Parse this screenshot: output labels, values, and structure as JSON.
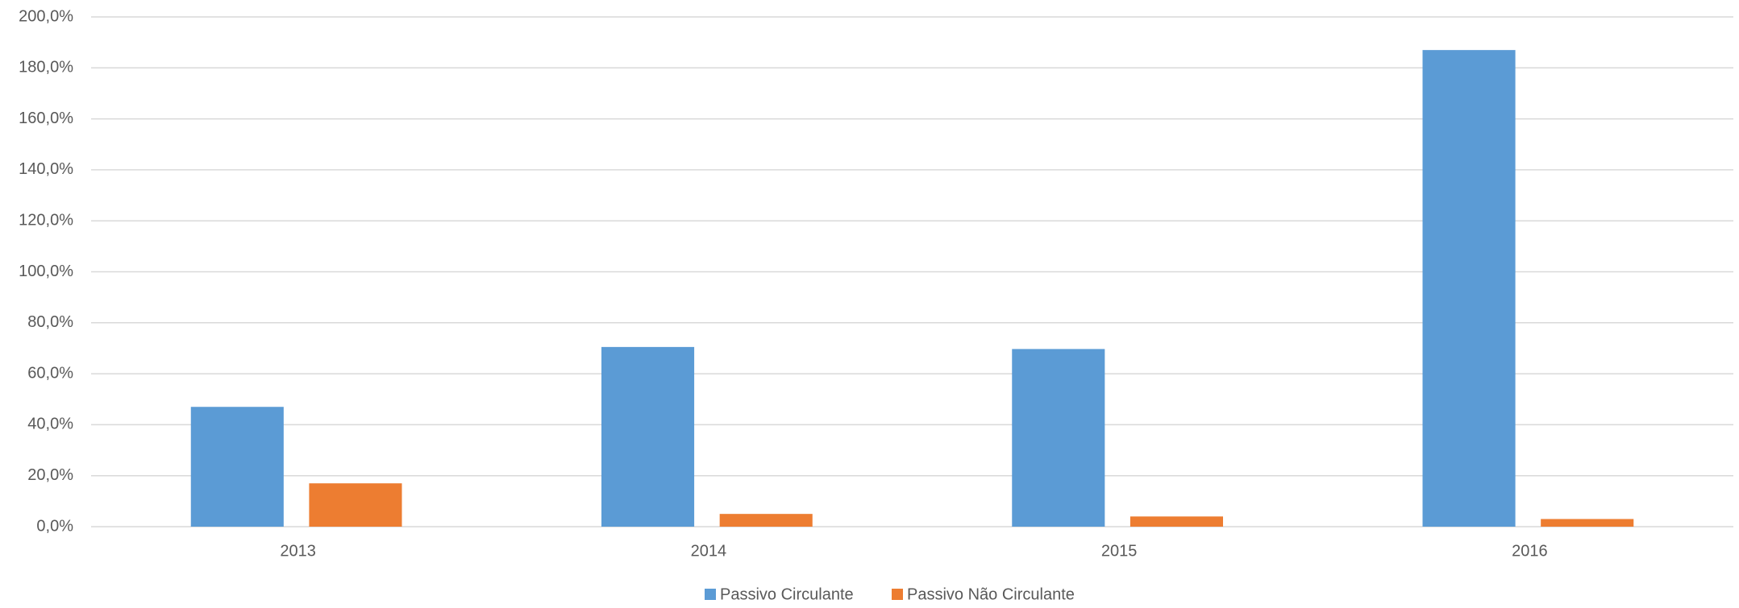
{
  "chart_data": {
    "type": "bar",
    "categories": [
      "2013",
      "2014",
      "2015",
      "2016"
    ],
    "series": [
      {
        "name": "Passivo Circulante",
        "color": "#5b9bd5",
        "values": [
          47,
          70.5,
          69.7,
          187
        ]
      },
      {
        "name": "Passivo Não Circulante",
        "color": "#ed7d31",
        "values": [
          17,
          5,
          4,
          3
        ]
      }
    ],
    "ylim": [
      0,
      200
    ],
    "yticks": [
      {
        "value": 0,
        "label": "0,0%"
      },
      {
        "value": 20,
        "label": "20,0%"
      },
      {
        "value": 40,
        "label": "40,0%"
      },
      {
        "value": 60,
        "label": "60,0%"
      },
      {
        "value": 80,
        "label": "80,0%"
      },
      {
        "value": 100,
        "label": "100,0%"
      },
      {
        "value": 120,
        "label": "120,0%"
      },
      {
        "value": 140,
        "label": "140,0%"
      },
      {
        "value": 160,
        "label": "160,0%"
      },
      {
        "value": 180,
        "label": "180,0%"
      },
      {
        "value": 200,
        "label": "200,0%"
      }
    ],
    "grid": true,
    "legend": "bottom"
  }
}
